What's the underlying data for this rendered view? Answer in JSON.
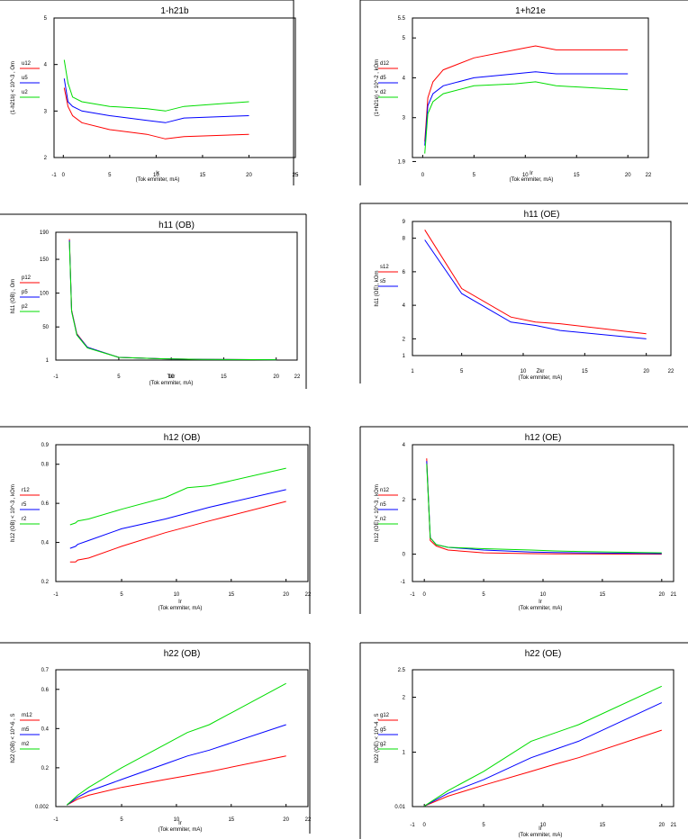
{
  "chart_data": [
    {
      "type": "line",
      "title": "1-h21b",
      "xlabel": "Ir",
      "xlabel2": "(Tok emmiter, mA)",
      "ylabel": "(1-h21b)   < 10^-3 , Om",
      "xlim": [
        -1,
        25
      ],
      "ylim": [
        2,
        5
      ],
      "xtick_labels": [
        "-1",
        "0",
        "5",
        "10",
        "15",
        "20",
        "25",
        "25"
      ],
      "ytick_labels": [
        "2",
        "3",
        "4",
        "5"
      ],
      "series": [
        {
          "name": "u12",
          "color": "#ff0000",
          "x": [
            0.1,
            0.5,
            1,
            2,
            5,
            9,
            11,
            13,
            20
          ],
          "y": [
            3.5,
            3.1,
            2.9,
            2.75,
            2.6,
            2.5,
            2.4,
            2.45,
            2.5
          ]
        },
        {
          "name": "u5",
          "color": "#0000ff",
          "x": [
            0.1,
            0.5,
            1,
            2,
            5,
            9,
            11,
            13,
            20
          ],
          "y": [
            3.7,
            3.2,
            3.1,
            3.0,
            2.9,
            2.8,
            2.75,
            2.85,
            2.9
          ]
        },
        {
          "name": "u2",
          "color": "#00dd00",
          "x": [
            0.1,
            0.5,
            1,
            2,
            5,
            9,
            11,
            13,
            20
          ],
          "y": [
            4.1,
            3.6,
            3.3,
            3.2,
            3.1,
            3.05,
            3.0,
            3.1,
            3.2
          ]
        }
      ]
    },
    {
      "type": "line",
      "title": "1+h21e",
      "xlabel": "Ir",
      "xlabel2": "(Tok emmiter, mA)",
      "ylabel": "(1+h21e)   < 10^-2 , kOm",
      "xlim": [
        -1,
        22
      ],
      "ylim": [
        2,
        5.5
      ],
      "xtick_labels": [
        "0",
        "5",
        "10",
        "15",
        "20",
        "22"
      ],
      "ytick_labels": [
        "1.9",
        "3",
        "4",
        "5",
        "5.5"
      ],
      "series": [
        {
          "name": "d12",
          "color": "#ff0000",
          "x": [
            0.2,
            0.5,
            1,
            2,
            5,
            9,
            11,
            13,
            20
          ],
          "y": [
            2.4,
            3.5,
            3.9,
            4.2,
            4.5,
            4.7,
            4.8,
            4.7,
            4.7
          ]
        },
        {
          "name": "d5",
          "color": "#0000ff",
          "x": [
            0.2,
            0.5,
            1,
            2,
            5,
            9,
            11,
            13,
            20
          ],
          "y": [
            2.3,
            3.3,
            3.6,
            3.8,
            4.0,
            4.1,
            4.15,
            4.1,
            4.1
          ]
        },
        {
          "name": "d2",
          "color": "#00dd00",
          "x": [
            0.2,
            0.5,
            1,
            2,
            5,
            9,
            11,
            13,
            20
          ],
          "y": [
            2.1,
            3.1,
            3.4,
            3.6,
            3.8,
            3.85,
            3.9,
            3.8,
            3.7
          ]
        }
      ]
    },
    {
      "type": "line",
      "title": "h11 (OB)",
      "xlabel": "Tkr",
      "xlabel2": "(Tok emmiter, mA)",
      "ylabel": "h11 (OB) ,  Om",
      "xlim": [
        -1,
        22
      ],
      "ylim": [
        1,
        190
      ],
      "xtick_labels": [
        "-1",
        "5",
        "10",
        "15",
        "20",
        "22"
      ],
      "ytick_labels": [
        "1",
        "50",
        "100",
        "150",
        "190"
      ],
      "series": [
        {
          "name": "p12",
          "color": "#ff0000",
          "x": [
            0.3,
            0.5,
            1,
            2,
            5,
            9,
            11,
            13,
            20
          ],
          "y": [
            180,
            75,
            40,
            20,
            5,
            3,
            2.5,
            2,
            1.5
          ]
        },
        {
          "name": "p5",
          "color": "#0000ff",
          "x": [
            0.3,
            0.5,
            1,
            2,
            5,
            9,
            11,
            13,
            20
          ],
          "y": [
            178,
            74,
            39,
            20,
            5,
            3,
            2.5,
            2,
            1.5
          ]
        },
        {
          "name": "p2",
          "color": "#00dd00",
          "x": [
            0.3,
            0.5,
            1,
            2,
            5,
            9,
            11,
            13,
            20
          ],
          "y": [
            176,
            73,
            38,
            19,
            5,
            3,
            2.5,
            2,
            1.5
          ]
        }
      ]
    },
    {
      "type": "line",
      "title": "h11 (OE)",
      "xlabel": "Zkr",
      "xlabel2": "(Tok emmiter, mA)",
      "ylabel": "h11 (OE),   kOm",
      "xlim": [
        1,
        22
      ],
      "ylim": [
        1,
        9
      ],
      "xtick_labels": [
        "1",
        "5",
        "10",
        "15",
        "20",
        "22"
      ],
      "ytick_labels": [
        "1",
        "2",
        "4",
        "6",
        "8",
        "9"
      ],
      "series": [
        {
          "name": "s12",
          "color": "#ff0000",
          "x": [
            2,
            5,
            9,
            11,
            13,
            20
          ],
          "y": [
            8.5,
            5.0,
            3.3,
            3.0,
            2.9,
            2.3
          ]
        },
        {
          "name": "s5",
          "color": "#0000ff",
          "x": [
            2,
            5,
            9,
            11,
            13,
            20
          ],
          "y": [
            7.9,
            4.7,
            3.0,
            2.8,
            2.5,
            2.0
          ]
        }
      ]
    },
    {
      "type": "line",
      "title": "h12 (OB)",
      "xlabel": "Ir",
      "xlabel2": "(Tok emmiter, mA)",
      "ylabel": "h12 (OB)   < 10^-3 , kOm",
      "xlim": [
        -1,
        22
      ],
      "ylim": [
        0.2,
        0.9
      ],
      "xtick_labels": [
        "-1",
        "5",
        "10",
        "15",
        "20",
        "22"
      ],
      "ytick_labels": [
        "0.2",
        "0.4",
        "0.6",
        "0.8",
        "0.9"
      ],
      "series": [
        {
          "name": "r12",
          "color": "#ff0000",
          "x": [
            0.3,
            0.8,
            1,
            2,
            5,
            9,
            11,
            13,
            20
          ],
          "y": [
            0.3,
            0.3,
            0.31,
            0.32,
            0.38,
            0.45,
            0.48,
            0.51,
            0.61
          ]
        },
        {
          "name": "r5",
          "color": "#0000ff",
          "x": [
            0.3,
            0.8,
            1,
            2,
            5,
            9,
            11,
            13,
            20
          ],
          "y": [
            0.37,
            0.38,
            0.39,
            0.41,
            0.47,
            0.52,
            0.55,
            0.58,
            0.67
          ]
        },
        {
          "name": "r2",
          "color": "#00dd00",
          "x": [
            0.3,
            0.8,
            1,
            2,
            5,
            9,
            11,
            13,
            20
          ],
          "y": [
            0.49,
            0.5,
            0.51,
            0.52,
            0.57,
            0.63,
            0.68,
            0.69,
            0.78
          ]
        }
      ]
    },
    {
      "type": "line",
      "title": "h12 (OE)",
      "xlabel": "Ir",
      "xlabel2": "(Tok emmiter, mA)",
      "ylabel": "h12 (OE)   < 10^-3 , kOm",
      "xlim": [
        -1,
        21
      ],
      "ylim": [
        -1,
        4
      ],
      "xtick_labels": [
        "-1",
        "0",
        "5",
        "10",
        "15",
        "20",
        "21"
      ],
      "ytick_labels": [
        "-1",
        "0",
        "2",
        "4"
      ],
      "series": [
        {
          "name": "n12",
          "color": "#ff0000",
          "x": [
            0.2,
            0.5,
            1,
            2,
            5,
            9,
            11,
            13,
            20
          ],
          "y": [
            3.5,
            0.5,
            0.3,
            0.15,
            0.05,
            0.02,
            0.01,
            0.01,
            0.0
          ]
        },
        {
          "name": "n5",
          "color": "#0000ff",
          "x": [
            0.2,
            0.5,
            1,
            2,
            5,
            9,
            11,
            13,
            20
          ],
          "y": [
            3.4,
            0.6,
            0.35,
            0.25,
            0.15,
            0.08,
            0.06,
            0.05,
            0.02
          ]
        },
        {
          "name": "n2",
          "color": "#00dd00",
          "x": [
            0.2,
            0.5,
            1,
            2,
            5,
            9,
            11,
            13,
            20
          ],
          "y": [
            3.3,
            0.6,
            0.35,
            0.25,
            0.2,
            0.15,
            0.12,
            0.1,
            0.05
          ]
        }
      ]
    },
    {
      "type": "line",
      "title": "h22 (OB)",
      "xlabel": "Ir",
      "xlabel2": "(Tok emmiter, mA)",
      "ylabel": "h22 (OB)   < 10^-6 , S",
      "xlim": [
        -1,
        22
      ],
      "ylim": [
        0.002,
        0.7
      ],
      "xtick_labels": [
        "-1",
        "5",
        "10",
        "15",
        "20",
        "22"
      ],
      "ytick_labels": [
        "0.002",
        "0.2",
        "0.4",
        "0.6",
        "0.7"
      ],
      "series": [
        {
          "name": "m12",
          "color": "#ff0000",
          "x": [
            0,
            1,
            2,
            5,
            9,
            11,
            13,
            20
          ],
          "y": [
            0.01,
            0.04,
            0.06,
            0.1,
            0.14,
            0.16,
            0.18,
            0.26
          ]
        },
        {
          "name": "m5",
          "color": "#0000ff",
          "x": [
            0,
            1,
            2,
            5,
            9,
            11,
            13,
            20
          ],
          "y": [
            0.01,
            0.05,
            0.08,
            0.14,
            0.22,
            0.26,
            0.29,
            0.42
          ]
        },
        {
          "name": "m2",
          "color": "#00dd00",
          "x": [
            0,
            1,
            2,
            5,
            9,
            11,
            13,
            20
          ],
          "y": [
            0.01,
            0.06,
            0.1,
            0.2,
            0.32,
            0.38,
            0.42,
            0.63
          ]
        }
      ]
    },
    {
      "type": "line",
      "title": "h22 (OE)",
      "xlabel": "Ir",
      "xlabel2": "(Tok emmiter, mA)",
      "ylabel": "h22 (OE)   < 10^-4 , S",
      "xlim": [
        -1,
        21
      ],
      "ylim": [
        0.01,
        2.5
      ],
      "xtick_labels": [
        "-1",
        "0",
        "5",
        "10",
        "15",
        "20",
        "21"
      ],
      "ytick_labels": [
        "0.01",
        "1",
        "2",
        "2.5"
      ],
      "series": [
        {
          "name": "g12",
          "color": "#ff0000",
          "x": [
            0,
            2,
            5,
            9,
            11,
            13,
            20
          ],
          "y": [
            0.02,
            0.2,
            0.4,
            0.65,
            0.78,
            0.9,
            1.4
          ]
        },
        {
          "name": "g5",
          "color": "#0000ff",
          "x": [
            0,
            2,
            5,
            9,
            11,
            13,
            20
          ],
          "y": [
            0.02,
            0.25,
            0.5,
            0.9,
            1.05,
            1.2,
            1.9
          ]
        },
        {
          "name": "g2",
          "color": "#00dd00",
          "x": [
            0,
            2,
            5,
            9,
            11,
            13,
            20
          ],
          "y": [
            0.02,
            0.3,
            0.65,
            1.2,
            1.35,
            1.5,
            2.2
          ]
        }
      ]
    }
  ]
}
